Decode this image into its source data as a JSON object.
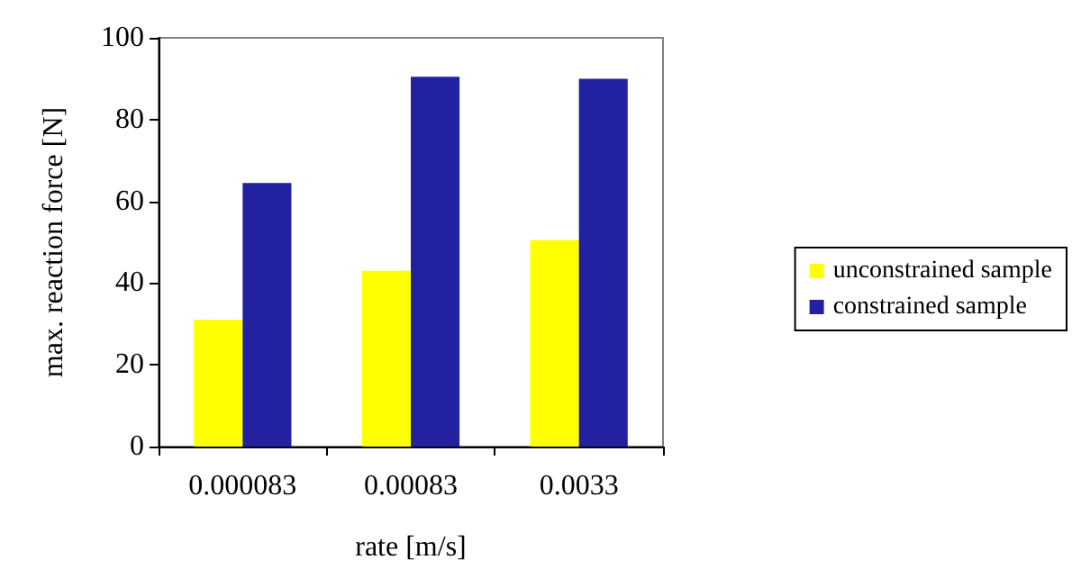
{
  "chart_data": {
    "type": "bar",
    "xlabel": "rate [m/s]",
    "ylabel": "max. reaction force [N]",
    "categories": [
      "0.000083",
      "0.00083",
      "0.0033"
    ],
    "series": [
      {
        "name": "unconstrained sample",
        "color": "#ffff00",
        "values": [
          31,
          43,
          50.5
        ]
      },
      {
        "name": "constrained sample",
        "color": "#2222a0",
        "values": [
          64.5,
          90.5,
          90
        ]
      }
    ],
    "ylim": [
      0,
      100
    ],
    "yticks": [
      0,
      20,
      40,
      60,
      80,
      100
    ],
    "grid": false,
    "legend": "right"
  }
}
